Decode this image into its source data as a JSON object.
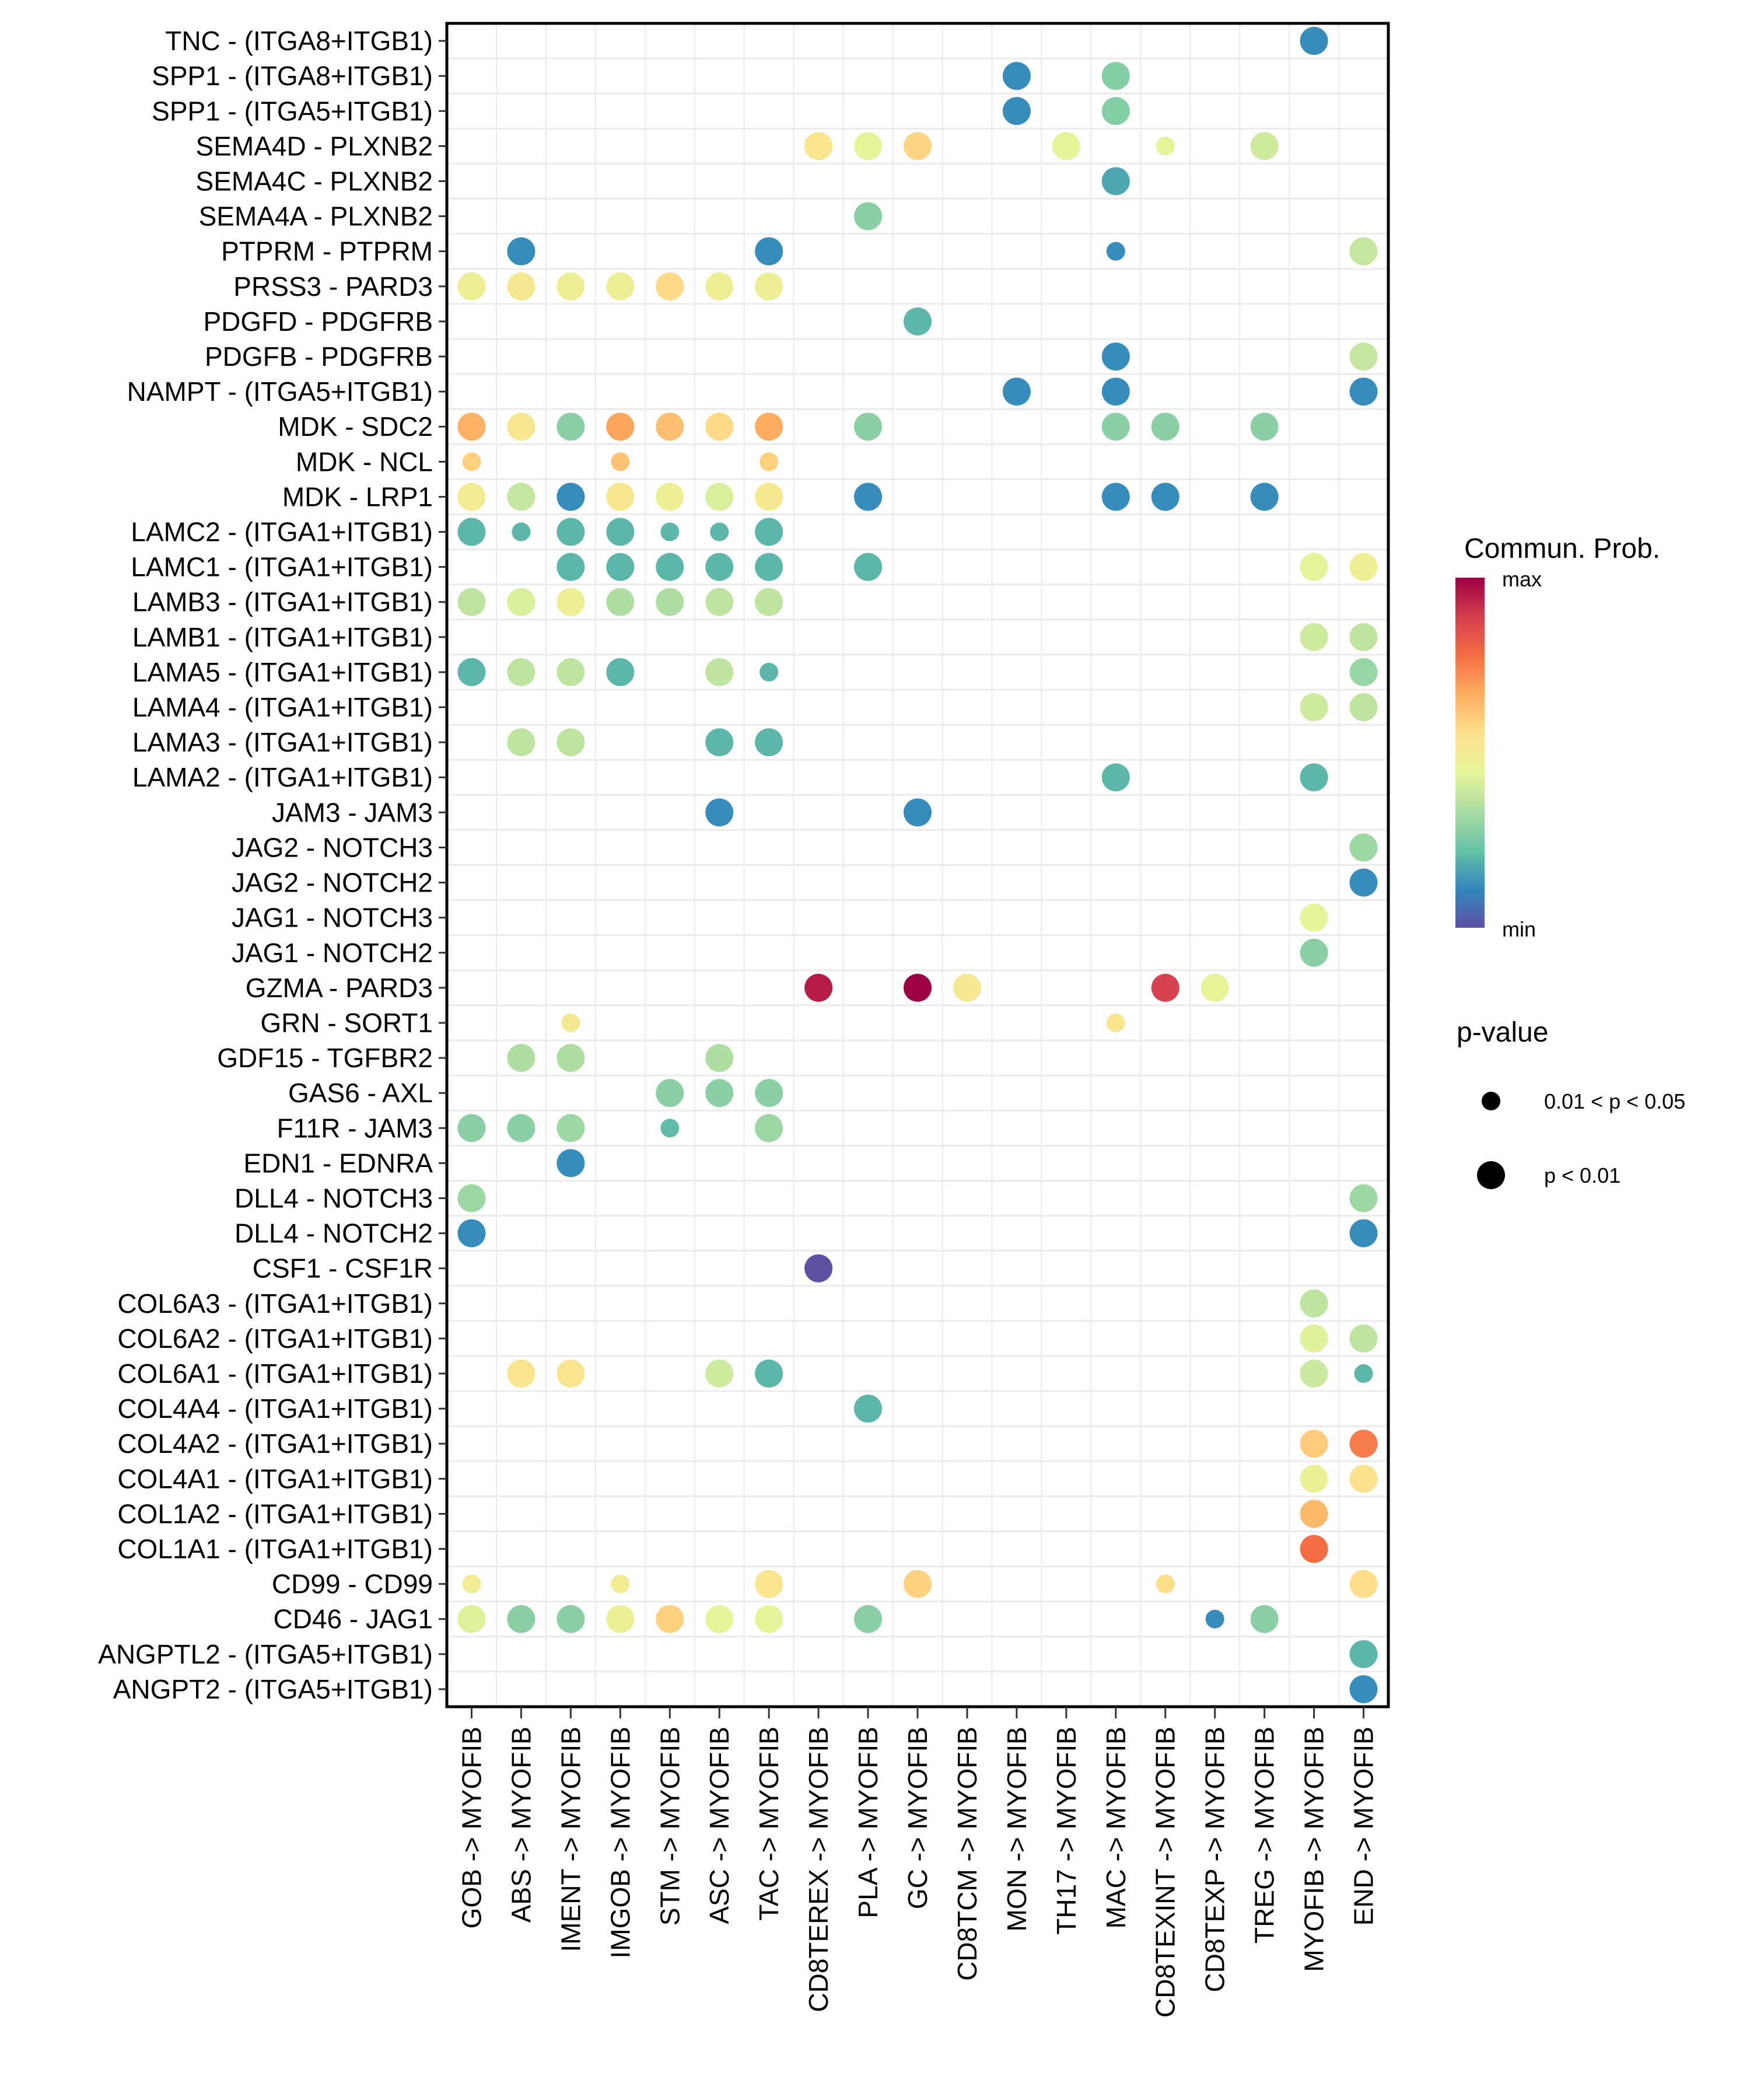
{
  "chart_data": {
    "type": "scatter",
    "subtype": "dot-matrix (bubble)",
    "title": "",
    "xlabel": "",
    "ylabel": "",
    "x_categories": [
      "GOB -> MYOFIB",
      "ABS -> MYOFIB",
      "IMENT -> MYOFIB",
      "IMGOB -> MYOFIB",
      "STM -> MYOFIB",
      "ASC -> MYOFIB",
      "TAC -> MYOFIB",
      "CD8TEREX -> MYOFIB",
      "PLA -> MYOFIB",
      "GC -> MYOFIB",
      "CD8TCM -> MYOFIB",
      "MON -> MYOFIB",
      "TH17 -> MYOFIB",
      "MAC -> MYOFIB",
      "CD8TEXINT -> MYOFIB",
      "CD8TEXP -> MYOFIB",
      "TREG -> MYOFIB",
      "MYOFIB -> MYOFIB",
      "END -> MYOFIB"
    ],
    "y_categories": [
      "TNC - (ITGA8+ITGB1)",
      "SPP1 - (ITGA8+ITGB1)",
      "SPP1 - (ITGA5+ITGB1)",
      "SEMA4D - PLXNB2",
      "SEMA4C - PLXNB2",
      "SEMA4A - PLXNB2",
      "PTPRM - PTPRM",
      "PRSS3 - PARD3",
      "PDGFD - PDGFRB",
      "PDGFB - PDGFRB",
      "NAMPT - (ITGA5+ITGB1)",
      "MDK - SDC2",
      "MDK - NCL",
      "MDK - LRP1",
      "LAMC2 - (ITGA1+ITGB1)",
      "LAMC1 - (ITGA1+ITGB1)",
      "LAMB3 - (ITGA1+ITGB1)",
      "LAMB1 - (ITGA1+ITGB1)",
      "LAMA5 - (ITGA1+ITGB1)",
      "LAMA4 - (ITGA1+ITGB1)",
      "LAMA3 - (ITGA1+ITGB1)",
      "LAMA2 - (ITGA1+ITGB1)",
      "JAM3 - JAM3",
      "JAG2 - NOTCH3",
      "JAG2 - NOTCH2",
      "JAG1 - NOTCH3",
      "JAG1 - NOTCH2",
      "GZMA - PARD3",
      "GRN - SORT1",
      "GDF15 - TGFBR2",
      "GAS6 - AXL",
      "F11R - JAM3",
      "EDN1 - EDNRA",
      "DLL4 - NOTCH3",
      "DLL4 - NOTCH2",
      "CSF1 - CSF1R",
      "COL6A3 - (ITGA1+ITGB1)",
      "COL6A2 - (ITGA1+ITGB1)",
      "COL6A1 - (ITGA1+ITGB1)",
      "COL4A4 - (ITGA1+ITGB1)",
      "COL4A2 - (ITGA1+ITGB1)",
      "COL4A1 - (ITGA1+ITGB1)",
      "COL1A2 - (ITGA1+ITGB1)",
      "COL1A1 - (ITGA1+ITGB1)",
      "CD99 - CD99",
      "CD46 - JAG1",
      "ANGPTL2 - (ITGA5+ITGB1)",
      "ANGPT2 - (ITGA5+ITGB1)"
    ],
    "point_fields": [
      "row",
      "col",
      "prob_scaled",
      "pval"
    ],
    "points": [
      [
        0,
        17,
        0.12,
        "L"
      ],
      [
        1,
        11,
        0.12,
        "L"
      ],
      [
        1,
        13,
        0.27,
        "L"
      ],
      [
        2,
        11,
        0.12,
        "L"
      ],
      [
        2,
        13,
        0.27,
        "L"
      ],
      [
        3,
        7,
        0.53,
        "L"
      ],
      [
        3,
        8,
        0.44,
        "L"
      ],
      [
        3,
        9,
        0.58,
        "L"
      ],
      [
        3,
        12,
        0.44,
        "L"
      ],
      [
        3,
        14,
        0.44,
        "S"
      ],
      [
        3,
        16,
        0.4,
        "L"
      ],
      [
        4,
        13,
        0.17,
        "L"
      ],
      [
        5,
        8,
        0.28,
        "L"
      ],
      [
        6,
        1,
        0.12,
        "L"
      ],
      [
        6,
        6,
        0.12,
        "L"
      ],
      [
        6,
        13,
        0.12,
        "S"
      ],
      [
        6,
        18,
        0.38,
        "L"
      ],
      [
        7,
        0,
        0.48,
        "L"
      ],
      [
        7,
        1,
        0.51,
        "L"
      ],
      [
        7,
        2,
        0.48,
        "L"
      ],
      [
        7,
        3,
        0.48,
        "L"
      ],
      [
        7,
        4,
        0.57,
        "L"
      ],
      [
        7,
        5,
        0.48,
        "L"
      ],
      [
        7,
        6,
        0.48,
        "L"
      ],
      [
        8,
        9,
        0.2,
        "L"
      ],
      [
        9,
        13,
        0.12,
        "L"
      ],
      [
        9,
        18,
        0.38,
        "L"
      ],
      [
        10,
        11,
        0.12,
        "L"
      ],
      [
        10,
        13,
        0.12,
        "L"
      ],
      [
        10,
        18,
        0.12,
        "L"
      ],
      [
        11,
        0,
        0.66,
        "L"
      ],
      [
        11,
        1,
        0.52,
        "L"
      ],
      [
        11,
        2,
        0.28,
        "L"
      ],
      [
        11,
        3,
        0.68,
        "L"
      ],
      [
        11,
        4,
        0.63,
        "L"
      ],
      [
        11,
        5,
        0.57,
        "L"
      ],
      [
        11,
        6,
        0.67,
        "L"
      ],
      [
        11,
        8,
        0.28,
        "L"
      ],
      [
        11,
        13,
        0.28,
        "L"
      ],
      [
        11,
        14,
        0.28,
        "L"
      ],
      [
        11,
        16,
        0.28,
        "L"
      ],
      [
        12,
        0,
        0.59,
        "S"
      ],
      [
        12,
        3,
        0.62,
        "S"
      ],
      [
        12,
        6,
        0.59,
        "S"
      ],
      [
        13,
        0,
        0.5,
        "L"
      ],
      [
        13,
        1,
        0.38,
        "L"
      ],
      [
        13,
        2,
        0.12,
        "L"
      ],
      [
        13,
        3,
        0.52,
        "L"
      ],
      [
        13,
        4,
        0.48,
        "L"
      ],
      [
        13,
        5,
        0.42,
        "L"
      ],
      [
        13,
        6,
        0.51,
        "L"
      ],
      [
        13,
        8,
        0.12,
        "L"
      ],
      [
        13,
        13,
        0.12,
        "L"
      ],
      [
        13,
        14,
        0.12,
        "L"
      ],
      [
        13,
        16,
        0.12,
        "L"
      ],
      [
        14,
        0,
        0.2,
        "L"
      ],
      [
        14,
        1,
        0.2,
        "S"
      ],
      [
        14,
        2,
        0.2,
        "L"
      ],
      [
        14,
        3,
        0.2,
        "L"
      ],
      [
        14,
        4,
        0.2,
        "S"
      ],
      [
        14,
        5,
        0.2,
        "S"
      ],
      [
        14,
        6,
        0.2,
        "L"
      ],
      [
        15,
        2,
        0.2,
        "L"
      ],
      [
        15,
        3,
        0.2,
        "L"
      ],
      [
        15,
        4,
        0.2,
        "L"
      ],
      [
        15,
        5,
        0.2,
        "L"
      ],
      [
        15,
        6,
        0.2,
        "L"
      ],
      [
        15,
        8,
        0.2,
        "L"
      ],
      [
        15,
        17,
        0.44,
        "L"
      ],
      [
        15,
        18,
        0.48,
        "L"
      ],
      [
        16,
        0,
        0.37,
        "L"
      ],
      [
        16,
        1,
        0.42,
        "L"
      ],
      [
        16,
        2,
        0.48,
        "L"
      ],
      [
        16,
        3,
        0.34,
        "L"
      ],
      [
        16,
        4,
        0.34,
        "L"
      ],
      [
        16,
        5,
        0.37,
        "L"
      ],
      [
        16,
        6,
        0.37,
        "L"
      ],
      [
        17,
        17,
        0.4,
        "L"
      ],
      [
        17,
        18,
        0.37,
        "L"
      ],
      [
        18,
        0,
        0.2,
        "L"
      ],
      [
        18,
        1,
        0.37,
        "L"
      ],
      [
        18,
        2,
        0.37,
        "L"
      ],
      [
        18,
        3,
        0.2,
        "L"
      ],
      [
        18,
        5,
        0.37,
        "L"
      ],
      [
        18,
        6,
        0.2,
        "S"
      ],
      [
        18,
        18,
        0.3,
        "L"
      ],
      [
        19,
        17,
        0.4,
        "L"
      ],
      [
        19,
        18,
        0.37,
        "L"
      ],
      [
        20,
        1,
        0.37,
        "L"
      ],
      [
        20,
        2,
        0.37,
        "L"
      ],
      [
        20,
        5,
        0.2,
        "L"
      ],
      [
        20,
        6,
        0.2,
        "L"
      ],
      [
        21,
        13,
        0.2,
        "L"
      ],
      [
        21,
        17,
        0.2,
        "L"
      ],
      [
        22,
        5,
        0.12,
        "L"
      ],
      [
        22,
        9,
        0.12,
        "L"
      ],
      [
        23,
        18,
        0.31,
        "L"
      ],
      [
        24,
        18,
        0.12,
        "L"
      ],
      [
        25,
        17,
        0.44,
        "L"
      ],
      [
        26,
        17,
        0.28,
        "L"
      ],
      [
        27,
        7,
        0.95,
        "L"
      ],
      [
        27,
        9,
        1.0,
        "L"
      ],
      [
        27,
        10,
        0.51,
        "L"
      ],
      [
        27,
        14,
        0.88,
        "L"
      ],
      [
        27,
        15,
        0.46,
        "L"
      ],
      [
        28,
        2,
        0.51,
        "S"
      ],
      [
        28,
        13,
        0.53,
        "S"
      ],
      [
        29,
        1,
        0.34,
        "L"
      ],
      [
        29,
        2,
        0.34,
        "L"
      ],
      [
        29,
        5,
        0.34,
        "L"
      ],
      [
        30,
        4,
        0.28,
        "L"
      ],
      [
        30,
        5,
        0.28,
        "L"
      ],
      [
        30,
        6,
        0.28,
        "L"
      ],
      [
        31,
        0,
        0.28,
        "L"
      ],
      [
        31,
        1,
        0.28,
        "L"
      ],
      [
        31,
        2,
        0.31,
        "L"
      ],
      [
        31,
        4,
        0.21,
        "S"
      ],
      [
        31,
        6,
        0.31,
        "L"
      ],
      [
        32,
        2,
        0.12,
        "L"
      ],
      [
        33,
        0,
        0.31,
        "L"
      ],
      [
        33,
        18,
        0.31,
        "L"
      ],
      [
        34,
        0,
        0.12,
        "L"
      ],
      [
        34,
        18,
        0.12,
        "L"
      ],
      [
        35,
        7,
        0.0,
        "L"
      ],
      [
        36,
        17,
        0.37,
        "L"
      ],
      [
        37,
        17,
        0.43,
        "L"
      ],
      [
        37,
        18,
        0.37,
        "L"
      ],
      [
        38,
        1,
        0.53,
        "L"
      ],
      [
        38,
        2,
        0.53,
        "L"
      ],
      [
        38,
        5,
        0.4,
        "L"
      ],
      [
        38,
        6,
        0.2,
        "L"
      ],
      [
        38,
        17,
        0.39,
        "L"
      ],
      [
        38,
        18,
        0.2,
        "S"
      ],
      [
        39,
        8,
        0.2,
        "L"
      ],
      [
        40,
        17,
        0.6,
        "L"
      ],
      [
        40,
        18,
        0.75,
        "L"
      ],
      [
        41,
        17,
        0.47,
        "L"
      ],
      [
        41,
        18,
        0.55,
        "L"
      ],
      [
        42,
        17,
        0.64,
        "L"
      ],
      [
        43,
        17,
        0.78,
        "L"
      ],
      [
        44,
        0,
        0.5,
        "S"
      ],
      [
        44,
        3,
        0.5,
        "S"
      ],
      [
        44,
        6,
        0.53,
        "L"
      ],
      [
        44,
        9,
        0.59,
        "L"
      ],
      [
        44,
        14,
        0.56,
        "S"
      ],
      [
        44,
        18,
        0.56,
        "L"
      ],
      [
        45,
        0,
        0.43,
        "L"
      ],
      [
        45,
        1,
        0.28,
        "L"
      ],
      [
        45,
        2,
        0.28,
        "L"
      ],
      [
        45,
        3,
        0.47,
        "L"
      ],
      [
        45,
        4,
        0.59,
        "L"
      ],
      [
        45,
        5,
        0.44,
        "L"
      ],
      [
        45,
        6,
        0.44,
        "L"
      ],
      [
        45,
        8,
        0.28,
        "L"
      ],
      [
        45,
        15,
        0.12,
        "S"
      ],
      [
        45,
        16,
        0.28,
        "L"
      ],
      [
        46,
        18,
        0.2,
        "L"
      ],
      [
        47,
        18,
        0.12,
        "L"
      ]
    ],
    "colorbar": {
      "title": "Commun. Prob.",
      "max_label": "max",
      "min_label": "min",
      "palette": [
        "#5E4FA2",
        "#3288BD",
        "#66C2A5",
        "#ABDDA4",
        "#E6F598",
        "#FEE08B",
        "#FDAE61",
        "#F46D43",
        "#D53E4F",
        "#9E0142"
      ]
    },
    "size_legend": {
      "title": "p-value",
      "items": [
        {
          "key": "S",
          "label": "0.01 < p < 0.05"
        },
        {
          "key": "L",
          "label": "p < 0.01"
        }
      ]
    },
    "grid": true,
    "legend_position": "right"
  }
}
